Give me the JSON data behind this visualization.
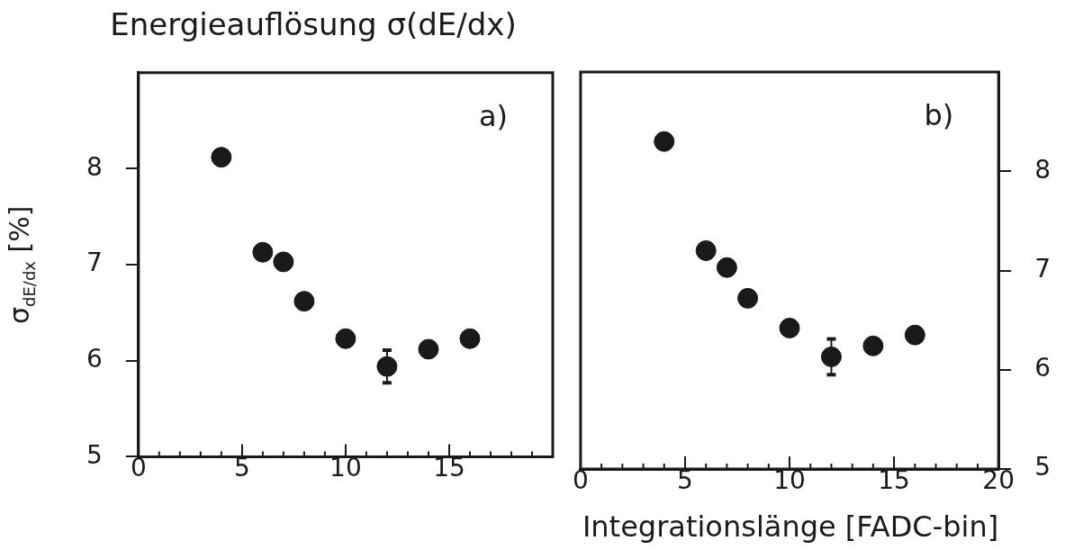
{
  "chart_data": [
    {
      "type": "scatter",
      "title": "Energieauflösung σ(dE/dx)",
      "ylabel": "σ$_{dE/dx}$ [%]",
      "annotations": [
        "a)"
      ],
      "x": [
        4,
        6,
        7,
        8,
        10,
        12,
        14,
        16
      ],
      "series": [
        {
          "color": "#1a1a1a",
          "values": [
            8.12,
            7.13,
            7.03,
            6.62,
            6.23,
            5.94,
            6.12,
            6.23
          ],
          "errors": [
            null,
            null,
            null,
            null,
            null,
            0.17,
            null,
            null
          ]
        }
      ],
      "xlim": [
        0,
        20
      ],
      "xticks": [
        0,
        5,
        10,
        15,
        {
          "value": 20,
          "label": null
        }
      ],
      "ylim": [
        5,
        9
      ],
      "yticks": [
        5,
        6,
        7,
        8
      ],
      "marker": "circle",
      "grid": false,
      "legend": false
    },
    {
      "type": "scatter",
      "xlabel": "Integrationslänge [FADC-bin]",
      "annotations": [
        "b)"
      ],
      "x": [
        4,
        6,
        7,
        8,
        10,
        12,
        14,
        16
      ],
      "series": [
        {
          "color": "#1a1a1a",
          "values": [
            8.3,
            7.2,
            7.03,
            6.72,
            6.42,
            6.13,
            6.24,
            6.35
          ],
          "errors": [
            null,
            null,
            null,
            null,
            null,
            0.18,
            null,
            null
          ]
        }
      ],
      "xlim": [
        0,
        20
      ],
      "xticks": [
        0,
        5,
        10,
        15,
        20
      ],
      "ylim": [
        5,
        9
      ],
      "yticks": [
        5,
        6,
        7,
        8
      ],
      "marker": "circle",
      "grid": false,
      "legend": false
    }
  ]
}
